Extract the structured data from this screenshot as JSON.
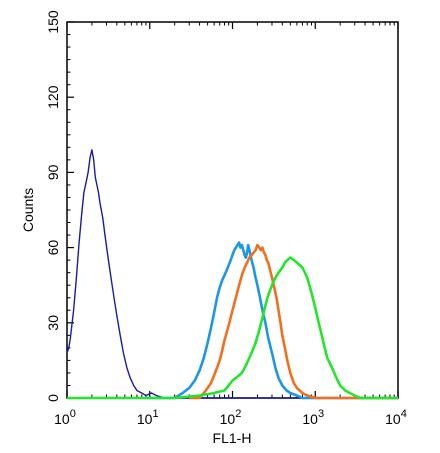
{
  "chart_data": {
    "type": "line",
    "xlabel": "FL1-H",
    "ylabel": "Counts",
    "xscale": "log",
    "xlim": [
      1,
      10000
    ],
    "ylim": [
      0,
      150
    ],
    "grid": false,
    "legend": "none",
    "x_ticks": [
      {
        "value": 1,
        "base": "10",
        "exp": "0"
      },
      {
        "value": 10,
        "base": "10",
        "exp": "1"
      },
      {
        "value": 100,
        "base": "10",
        "exp": "2"
      },
      {
        "value": 1000,
        "base": "10",
        "exp": "3"
      },
      {
        "value": 10000,
        "base": "10",
        "exp": "4"
      }
    ],
    "y_ticks": [
      0,
      30,
      60,
      90,
      120,
      150
    ],
    "series": [
      {
        "color": "#1a1aa8",
        "x": [
          1,
          1.05,
          1.1,
          1.2,
          1.3,
          1.4,
          1.5,
          1.6,
          1.7,
          1.8,
          1.9,
          2.0,
          2.1,
          2.2,
          2.3,
          2.4,
          2.5,
          2.7,
          2.9,
          3.1,
          3.4,
          3.7,
          4.0,
          4.4,
          4.8,
          5.3,
          5.8,
          6.4,
          7.0,
          8.0,
          9.0,
          10.5,
          12,
          15,
          20,
          30,
          60,
          100,
          1000,
          10000
        ],
        "y": [
          18,
          20,
          24,
          35,
          48,
          62,
          73,
          82,
          86,
          90,
          96,
          99,
          95,
          88,
          85,
          82,
          78,
          72,
          64,
          57,
          48,
          40,
          33,
          25,
          18,
          12,
          8,
          5,
          3,
          2,
          1,
          2,
          1,
          0,
          0,
          0,
          0,
          0,
          0,
          0
        ]
      },
      {
        "color": "#1e96e6",
        "x": [
          10,
          20,
          25,
          30,
          35,
          40,
          45,
          50,
          55,
          60,
          65,
          70,
          75,
          80,
          85,
          90,
          95,
          100,
          105,
          110,
          115,
          120,
          125,
          130,
          135,
          140,
          145,
          150,
          155,
          160,
          170,
          180,
          190,
          200,
          215,
          230,
          250,
          270,
          300,
          330,
          360,
          400,
          450,
          500,
          600,
          700,
          1000,
          10000
        ],
        "y": [
          0,
          0,
          2,
          4,
          7,
          11,
          16,
          22,
          28,
          34,
          40,
          44,
          47,
          49,
          51,
          53,
          55,
          57,
          59,
          60,
          61,
          62,
          60,
          61,
          59,
          57,
          56,
          58,
          61,
          59,
          55,
          52,
          48,
          45,
          40,
          35,
          30,
          24,
          18,
          12,
          8,
          5,
          3,
          2,
          1,
          0,
          0,
          0
        ]
      },
      {
        "color": "#f26f1e",
        "x": [
          30,
          40,
          45,
          50,
          55,
          60,
          65,
          70,
          75,
          80,
          90,
          100,
          110,
          120,
          130,
          140,
          150,
          160,
          170,
          180,
          190,
          200,
          210,
          220,
          230,
          240,
          250,
          260,
          270,
          280,
          300,
          320,
          340,
          360,
          380,
          400,
          430,
          460,
          500,
          550,
          600,
          700,
          800,
          1000,
          10000
        ],
        "y": [
          0,
          0,
          2,
          4,
          6,
          9,
          12,
          15,
          19,
          23,
          29,
          35,
          40,
          45,
          49,
          52,
          54,
          56,
          57,
          58,
          59,
          61,
          60,
          59,
          60,
          58,
          57,
          55,
          54,
          52,
          48,
          44,
          40,
          35,
          30,
          25,
          20,
          15,
          10,
          6,
          4,
          2,
          1,
          0,
          0
        ]
      },
      {
        "color": "#22e62a",
        "x": [
          1,
          20,
          40,
          60,
          80,
          90,
          100,
          110,
          120,
          130,
          140,
          150,
          170,
          190,
          210,
          230,
          250,
          270,
          300,
          330,
          360,
          400,
          430,
          460,
          500,
          550,
          600,
          650,
          700,
          750,
          800,
          850,
          900,
          1000,
          1100,
          1200,
          1300,
          1400,
          1600,
          1800,
          2000,
          2300,
          2600,
          3000,
          3500,
          10000
        ],
        "y": [
          0,
          0,
          1,
          2,
          3,
          5,
          7,
          8,
          9,
          10,
          12,
          14,
          18,
          22,
          27,
          32,
          37,
          41,
          45,
          48,
          50,
          52,
          54,
          55,
          56,
          55,
          54,
          53,
          52,
          50,
          48,
          45,
          42,
          36,
          30,
          25,
          20,
          16,
          12,
          8,
          5,
          3,
          2,
          1,
          0,
          0
        ]
      }
    ]
  }
}
